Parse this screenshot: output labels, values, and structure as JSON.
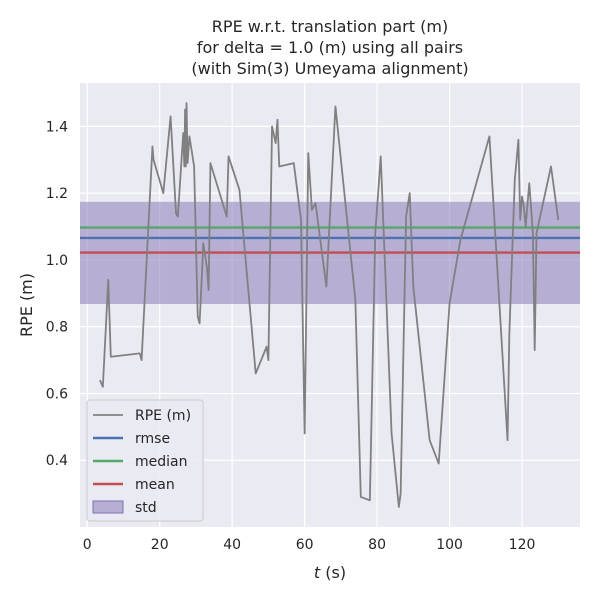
{
  "chart_data": {
    "type": "line",
    "title": [
      "RPE w.r.t. translation part (m)",
      "for delta = 1.0 (m) using all pairs",
      "(with Sim(3) Umeyama alignment)"
    ],
    "xlabel_italic": "t",
    "xlabel_unit": " (s)",
    "ylabel": "RPE (m)",
    "xlim": [
      -2,
      136
    ],
    "ylim": [
      0.2,
      1.53
    ],
    "x_ticks": [
      0,
      20,
      40,
      60,
      80,
      100,
      120
    ],
    "y_ticks": [
      0.4,
      0.6,
      0.8,
      1.0,
      1.2,
      1.4
    ],
    "y_tick_labels": [
      "0.4",
      "0.6",
      "0.8",
      "1.0",
      "1.2",
      "1.4"
    ],
    "grid": true,
    "legend_placement": "lower-left",
    "series": [
      {
        "name": "RPE (m)",
        "color": "#808080",
        "x": [
          3.5,
          4.3,
          5.8,
          6.5,
          14.5,
          15,
          18,
          18.3,
          21,
          23,
          24.5,
          25,
          26.5,
          26.8,
          27,
          27.2,
          27.4,
          27.7,
          28.2,
          29.5,
          30.5,
          31,
          31.8,
          32,
          33,
          33.5,
          34,
          38.5,
          39,
          42,
          46.5,
          49.5,
          50,
          51,
          52,
          52.5,
          53,
          57,
          59,
          60,
          61,
          62,
          63,
          66,
          68.5,
          74,
          75.5,
          78,
          79.5,
          81,
          84,
          86,
          86.5,
          87,
          88,
          89,
          90,
          94.5,
          97,
          100,
          103,
          111,
          116,
          116.5,
          118,
          119,
          119.5,
          120,
          120.5,
          121,
          122,
          123,
          123.5,
          124,
          128,
          130
        ],
        "y": [
          0.64,
          0.62,
          0.94,
          0.71,
          0.72,
          0.7,
          1.34,
          1.3,
          1.2,
          1.43,
          1.14,
          1.13,
          1.38,
          1.28,
          1.45,
          1.28,
          1.47,
          1.29,
          1.37,
          1.28,
          0.83,
          0.81,
          0.99,
          1.05,
          0.98,
          0.91,
          1.29,
          1.13,
          1.31,
          1.21,
          0.66,
          0.74,
          0.7,
          1.4,
          1.35,
          1.42,
          1.28,
          1.29,
          1.12,
          0.48,
          1.32,
          1.15,
          1.17,
          0.92,
          1.46,
          0.88,
          0.29,
          0.28,
          1.08,
          1.31,
          0.48,
          0.26,
          0.3,
          0.58,
          1.13,
          1.2,
          0.92,
          0.46,
          0.39,
          0.87,
          1.06,
          1.37,
          0.46,
          0.78,
          1.24,
          1.36,
          1.12,
          1.19,
          1.16,
          1.1,
          1.23,
          1.08,
          0.73,
          1.08,
          1.28,
          1.12
        ]
      },
      {
        "name": "rmse",
        "color": "#4c72b0",
        "value": 1.066
      },
      {
        "name": "median",
        "color": "#55a868",
        "value": 1.097
      },
      {
        "name": "mean",
        "color": "#c44e52",
        "value": 1.022
      },
      {
        "name": "std",
        "color": "#8172b3",
        "lower": 0.868,
        "upper": 1.174
      }
    ]
  }
}
